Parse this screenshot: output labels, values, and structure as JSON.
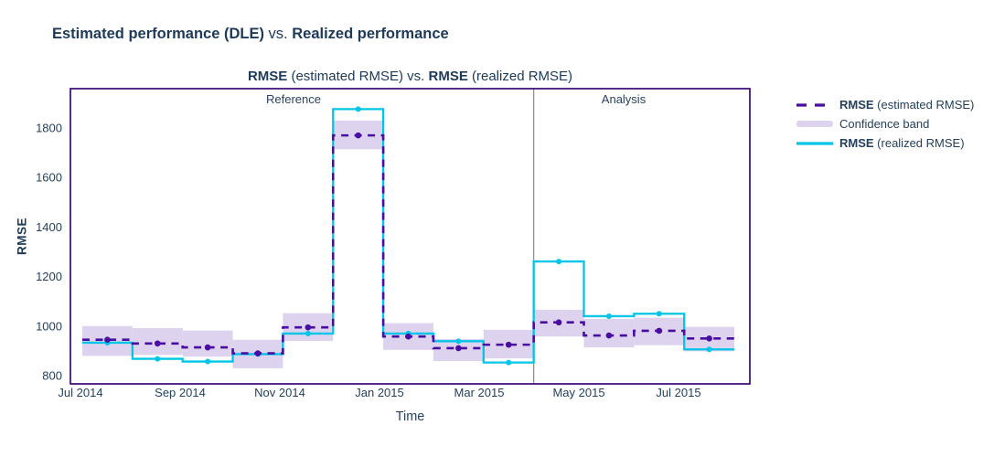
{
  "header": {
    "title_bold_1": "Estimated performance (DLE)",
    "title_normal": " vs. ",
    "title_bold_2": "Realized performance"
  },
  "chart": {
    "title_bold_1": "RMSE",
    "title_normal_1": " (estimated RMSE) vs. ",
    "title_bold_2": "RMSE",
    "title_normal_2": " (realized RMSE)",
    "y_axis_label": "RMSE",
    "x_axis_label": "Time",
    "region_labels": {
      "reference": "Reference",
      "analysis": "Analysis"
    }
  },
  "legend": {
    "items": [
      {
        "bold": "RMSE",
        "rest": " (estimated RMSE)"
      },
      {
        "label": "Confidence band"
      },
      {
        "bold": "RMSE",
        "rest": " (realized RMSE)"
      }
    ]
  },
  "colors": {
    "estimated_line": "#4a0da2",
    "realized_line": "#00c5e8",
    "confidence_band": "#ddd3ee",
    "plot_border": "#3a0873",
    "partition_divider": "#8a8a8a",
    "text_navy": "#25405e"
  },
  "chart_data": {
    "type": "line",
    "title": "RMSE (estimated RMSE) vs. RMSE (realized RMSE)",
    "xlabel": "Time",
    "ylabel": "RMSE",
    "ylim": [
      770,
      1960
    ],
    "grid": false,
    "legend_position": "right",
    "x_ticks": [
      "Jul 2014",
      "Sep 2014",
      "Nov 2014",
      "Jan 2015",
      "Mar 2015",
      "May 2015",
      "Jul 2015"
    ],
    "y_ticks": [
      800,
      1000,
      1200,
      1400,
      1600,
      1800
    ],
    "partitions": [
      "reference",
      "analysis"
    ],
    "series_names": [
      "RMSE (estimated RMSE)",
      "Confidence band",
      "RMSE (realized RMSE)"
    ],
    "chunks": [
      {
        "month": "Jul 2014",
        "period": "reference",
        "estimated": 945,
        "realized": 933,
        "band": [
          880,
          1000
        ]
      },
      {
        "month": "Aug 2014",
        "period": "reference",
        "estimated": 930,
        "realized": 868,
        "band": [
          884,
          992
        ]
      },
      {
        "month": "Sep 2014",
        "period": "reference",
        "estimated": 914,
        "realized": 857,
        "band": [
          877,
          982
        ]
      },
      {
        "month": "Oct 2014",
        "period": "reference",
        "estimated": 890,
        "realized": 887,
        "band": [
          830,
          945
        ]
      },
      {
        "month": "Nov 2014",
        "period": "reference",
        "estimated": 995,
        "realized": 970,
        "band": [
          940,
          1052
        ]
      },
      {
        "month": "Dec 2014",
        "period": "reference",
        "estimated": 1770,
        "realized": 1876,
        "band": [
          1714,
          1830
        ]
      },
      {
        "month": "Jan 2015",
        "period": "reference",
        "estimated": 958,
        "realized": 970,
        "band": [
          904,
          1012
        ]
      },
      {
        "month": "Feb 2015",
        "period": "reference",
        "estimated": 911,
        "realized": 939,
        "band": [
          859,
          948
        ]
      },
      {
        "month": "Mar 2015",
        "period": "reference",
        "estimated": 925,
        "realized": 853,
        "band": [
          870,
          985
        ]
      },
      {
        "month": "Apr 2015",
        "period": "analysis",
        "estimated": 1015,
        "realized": 1261,
        "band": [
          958,
          1066
        ]
      },
      {
        "month": "May 2015",
        "period": "analysis",
        "estimated": 962,
        "realized": 1040,
        "band": [
          914,
          1029
        ]
      },
      {
        "month": "Jun 2015",
        "period": "analysis",
        "estimated": 981,
        "realized": 1050,
        "band": [
          923,
          1034
        ]
      },
      {
        "month": "Jul 2015",
        "period": "analysis",
        "estimated": 950,
        "realized": 906,
        "band": [
          898,
          997
        ]
      }
    ]
  }
}
